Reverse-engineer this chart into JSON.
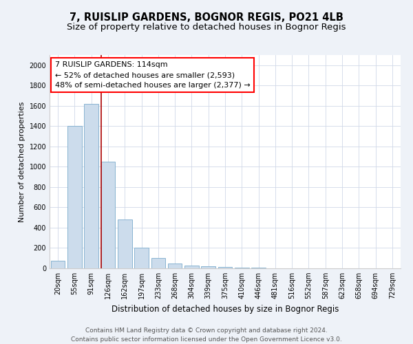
{
  "title1": "7, RUISLIP GARDENS, BOGNOR REGIS, PO21 4LB",
  "title2": "Size of property relative to detached houses in Bognor Regis",
  "xlabel": "Distribution of detached houses by size in Bognor Regis",
  "ylabel": "Number of detached properties",
  "categories": [
    "20sqm",
    "55sqm",
    "91sqm",
    "126sqm",
    "162sqm",
    "197sqm",
    "233sqm",
    "268sqm",
    "304sqm",
    "339sqm",
    "375sqm",
    "410sqm",
    "446sqm",
    "481sqm",
    "516sqm",
    "552sqm",
    "587sqm",
    "623sqm",
    "658sqm",
    "694sqm",
    "729sqm"
  ],
  "values": [
    75,
    1400,
    1620,
    1050,
    480,
    200,
    100,
    50,
    30,
    20,
    15,
    10,
    5,
    3,
    2,
    2,
    1,
    1,
    1,
    1,
    1
  ],
  "bar_color": "#ccdcec",
  "bar_edge_color": "#7aabcc",
  "grid_color": "#d0d8e8",
  "annotation_line1": "7 RUISLIP GARDENS: 114sqm",
  "annotation_line2": "← 52% of detached houses are smaller (2,593)",
  "annotation_line3": "48% of semi-detached houses are larger (2,377) →",
  "vline_x_index": 2.6,
  "vline_color": "#aa0000",
  "ylim": [
    0,
    2100
  ],
  "yticks": [
    0,
    200,
    400,
    600,
    800,
    1000,
    1200,
    1400,
    1600,
    1800,
    2000
  ],
  "footer_text": "Contains HM Land Registry data © Crown copyright and database right 2024.\nContains public sector information licensed under the Open Government Licence v3.0.",
  "background_color": "#eef2f8",
  "plot_bg_color": "#ffffff",
  "title1_fontsize": 10.5,
  "title2_fontsize": 9.5,
  "xlabel_fontsize": 8.5,
  "ylabel_fontsize": 8,
  "tick_fontsize": 7,
  "footer_fontsize": 6.5,
  "annotation_fontsize": 8
}
